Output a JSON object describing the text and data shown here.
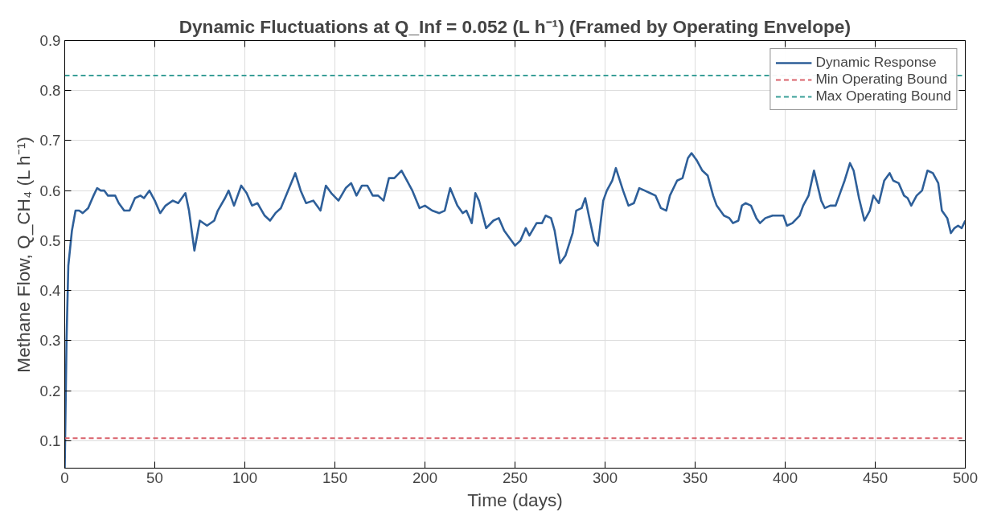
{
  "chart_data": {
    "type": "line",
    "title": "Dynamic Fluctuations at Q_Inf = 0.052 (L h⁻¹) (Framed by Operating Envelope)",
    "xlabel": "Time (days)",
    "ylabel": "Methane Flow, Q_CH₄ (L h⁻¹)",
    "x": [
      0,
      1,
      2,
      4,
      6,
      8,
      10,
      13,
      16,
      18,
      20,
      22,
      24,
      28,
      30,
      33,
      36,
      39,
      42,
      44,
      47,
      50,
      53,
      56,
      60,
      63,
      67,
      69,
      72,
      75,
      79,
      83,
      85,
      89,
      91,
      94,
      98,
      101,
      104,
      107,
      111,
      114,
      117,
      120,
      124,
      128,
      131,
      134,
      138,
      142,
      145,
      148,
      152,
      156,
      159,
      162,
      165,
      168,
      171,
      174,
      177,
      180,
      183,
      187,
      190,
      193,
      197,
      200,
      204,
      208,
      211,
      214,
      218,
      221,
      223,
      226,
      228,
      230,
      234,
      238,
      241,
      244,
      247,
      250,
      253,
      256,
      258,
      262,
      265,
      267,
      270,
      272,
      275,
      278,
      282,
      284,
      287,
      289,
      291,
      294,
      296,
      299,
      301,
      304,
      306,
      310,
      313,
      316,
      319,
      322,
      325,
      328,
      331,
      334,
      336,
      340,
      343,
      346,
      348,
      351,
      354,
      357,
      360,
      362,
      366,
      369,
      371,
      374,
      376,
      378,
      381,
      384,
      386,
      389,
      393,
      396,
      399,
      401,
      404,
      408,
      410,
      413,
      416,
      420,
      422,
      425,
      428,
      431,
      433,
      436,
      438,
      441,
      444,
      447,
      449,
      452,
      455,
      458,
      460,
      463,
      466,
      468,
      470,
      473,
      476,
      479,
      482,
      485,
      487,
      490,
      492,
      494,
      496,
      498,
      500
    ],
    "series": [
      {
        "name": "Dynamic Response",
        "color": "#2e5f99",
        "values": [
          0.045,
          0.3,
          0.45,
          0.52,
          0.56,
          0.56,
          0.555,
          0.565,
          0.59,
          0.605,
          0.6,
          0.6,
          0.59,
          0.59,
          0.575,
          0.56,
          0.56,
          0.585,
          0.59,
          0.585,
          0.6,
          0.58,
          0.555,
          0.57,
          0.58,
          0.575,
          0.595,
          0.56,
          0.48,
          0.54,
          0.53,
          0.54,
          0.56,
          0.585,
          0.6,
          0.57,
          0.61,
          0.595,
          0.57,
          0.575,
          0.55,
          0.54,
          0.555,
          0.565,
          0.6,
          0.635,
          0.6,
          0.575,
          0.58,
          0.56,
          0.61,
          0.595,
          0.58,
          0.605,
          0.615,
          0.59,
          0.61,
          0.61,
          0.59,
          0.59,
          0.58,
          0.625,
          0.625,
          0.64,
          0.62,
          0.6,
          0.565,
          0.57,
          0.56,
          0.555,
          0.56,
          0.605,
          0.57,
          0.555,
          0.56,
          0.535,
          0.595,
          0.58,
          0.525,
          0.54,
          0.545,
          0.52,
          0.505,
          0.49,
          0.5,
          0.525,
          0.51,
          0.535,
          0.535,
          0.55,
          0.545,
          0.52,
          0.455,
          0.47,
          0.515,
          0.56,
          0.565,
          0.585,
          0.55,
          0.5,
          0.49,
          0.58,
          0.6,
          0.62,
          0.645,
          0.6,
          0.57,
          0.575,
          0.605,
          0.6,
          0.595,
          0.59,
          0.565,
          0.56,
          0.59,
          0.62,
          0.625,
          0.665,
          0.675,
          0.66,
          0.64,
          0.63,
          0.59,
          0.57,
          0.55,
          0.545,
          0.535,
          0.54,
          0.57,
          0.575,
          0.57,
          0.545,
          0.535,
          0.545,
          0.55,
          0.55,
          0.55,
          0.53,
          0.535,
          0.55,
          0.57,
          0.59,
          0.64,
          0.58,
          0.565,
          0.57,
          0.57,
          0.6,
          0.62,
          0.655,
          0.64,
          0.585,
          0.54,
          0.56,
          0.59,
          0.575,
          0.62,
          0.635,
          0.62,
          0.615,
          0.59,
          0.585,
          0.57,
          0.59,
          0.6,
          0.64,
          0.635,
          0.615,
          0.56,
          0.545,
          0.515,
          0.525,
          0.53,
          0.525,
          0.54
        ]
      }
    ],
    "ref_lines": [
      {
        "axis": "y",
        "value": 0.105,
        "label": "Min Operating Bound",
        "color": "#d9626b",
        "line_style": "dashed"
      },
      {
        "axis": "y",
        "value": 0.83,
        "label": "Max Operating Bound",
        "color": "#3a9f98",
        "line_style": "dashed"
      }
    ],
    "xlim": [
      0,
      500
    ],
    "ylim": [
      0.045,
      0.9
    ],
    "xticks": [
      0,
      50,
      100,
      150,
      200,
      250,
      300,
      350,
      400,
      450,
      500
    ],
    "yticks": [
      0.1,
      0.2,
      0.3,
      0.4,
      0.5,
      0.6,
      0.7,
      0.8,
      0.9
    ],
    "grid": true,
    "legend": "top right",
    "line_style": "solid",
    "marker": "none"
  }
}
